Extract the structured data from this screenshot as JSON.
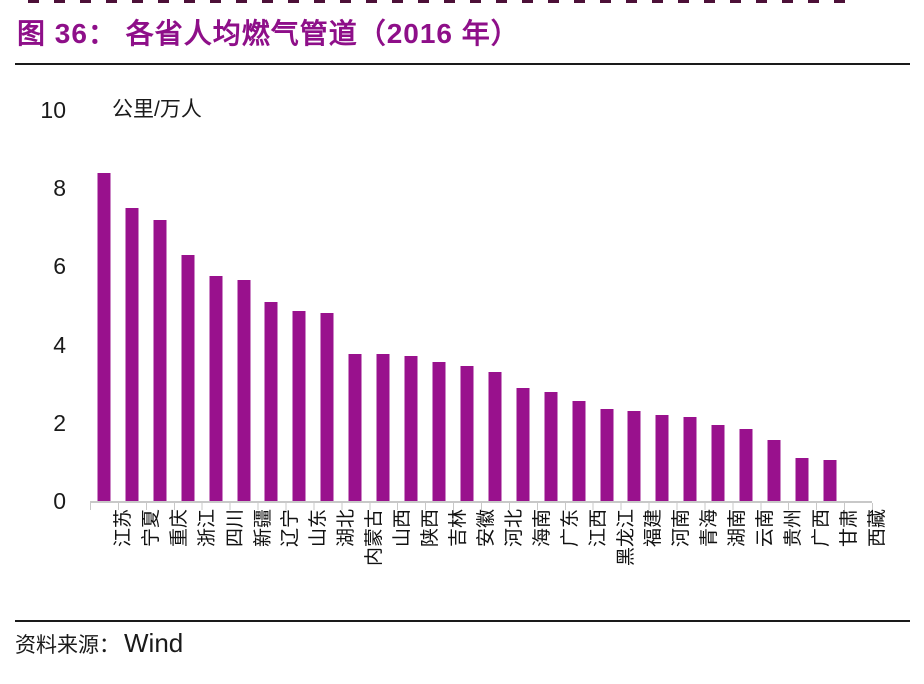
{
  "header": {
    "title": "图 36：  各省人均燃气管道（2016 年）"
  },
  "axis": {
    "unit": "公里/万人"
  },
  "footer": {
    "source_label": "资料来源：",
    "source_name": "Wind"
  },
  "colors": {
    "bar": "#99118D",
    "title": "#8E0F89",
    "axis_line": "#C8C8C8",
    "text": "#1A1A1A"
  },
  "chart_data": {
    "type": "bar",
    "title": "各省人均燃气管道（2016 年）",
    "xlabel": "",
    "ylabel": "公里/万人",
    "ylim": [
      0,
      10
    ],
    "yticks": [
      10,
      8,
      6,
      4,
      2,
      0
    ],
    "grid": false,
    "legend": "none",
    "categories": [
      "江苏",
      "宁夏",
      "重庆",
      "浙江",
      "四川",
      "新疆",
      "辽宁",
      "山东",
      "湖北",
      "内蒙古",
      "山西",
      "陕西",
      "吉林",
      "安徽",
      "河北",
      "海南",
      "广东",
      "江西",
      "黑龙江",
      "福建",
      "河南",
      "青海",
      "湖南",
      "云南",
      "贵州",
      "广西",
      "甘肃",
      "西藏"
    ],
    "values": [
      8.4,
      7.5,
      7.2,
      6.3,
      5.75,
      5.65,
      5.1,
      4.85,
      4.8,
      3.75,
      3.75,
      3.7,
      3.55,
      3.45,
      3.3,
      2.9,
      2.8,
      2.55,
      2.35,
      2.3,
      2.2,
      2.15,
      1.95,
      1.85,
      1.55,
      1.1,
      1.05,
      0
    ]
  }
}
